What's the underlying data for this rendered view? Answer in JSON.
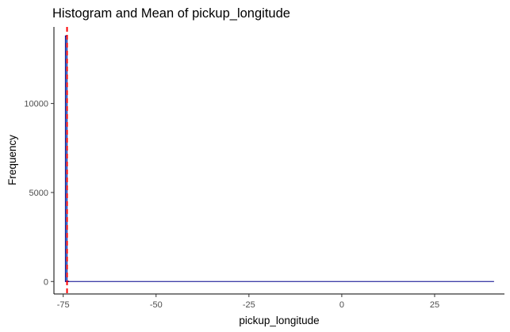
{
  "chart_data": {
    "type": "bar",
    "title": "Histogram and Mean of  pickup_longitude",
    "xlabel": "pickup_longitude",
    "ylabel": "Frequency",
    "xlim": [
      -77.5,
      43.8
    ],
    "ylim": [
      -700,
      14300
    ],
    "x_ticks": [
      -75,
      -50,
      -25,
      0,
      25
    ],
    "x_tick_labels": [
      "-75",
      "-50",
      "-25",
      "0",
      "25"
    ],
    "y_ticks": [
      0,
      5000,
      10000
    ],
    "y_tick_labels": [
      "0",
      "5000",
      "10000"
    ],
    "grid": false,
    "legend": "none",
    "bins": [
      {
        "x": -74.2,
        "count": 13800
      },
      {
        "x": -73.8,
        "count": 20
      }
    ],
    "baseline_x_range": [
      -74.5,
      41.0
    ],
    "mean_x": -73.97,
    "colors": {
      "bar_fill": "#56B4E9",
      "bar_outline": "#00008B",
      "mean_line": "#FF0000",
      "axis": "#000000"
    }
  }
}
